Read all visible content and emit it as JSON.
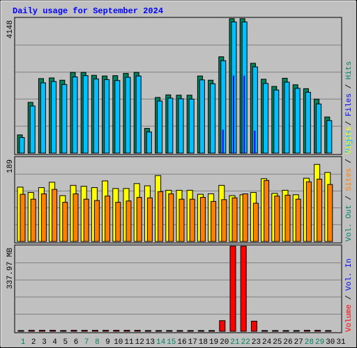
{
  "chart_data": [
    {
      "type": "bar",
      "title": "Daily usage for September 2024",
      "panel": "hits",
      "ymax_label": "4148",
      "ylim": [
        0,
        4148
      ],
      "categories": [
        "1",
        "2",
        "3",
        "4",
        "5",
        "6",
        "7",
        "8",
        "9",
        "10",
        "11",
        "12",
        "13",
        "14",
        "15",
        "16",
        "17",
        "18",
        "19",
        "20",
        "21",
        "22",
        "23",
        "24",
        "25",
        "26",
        "27",
        "28",
        "29",
        "30",
        "31"
      ],
      "weekend_days": [
        "1",
        "7",
        "8",
        "14",
        "15",
        "21",
        "22",
        "28",
        "29"
      ],
      "legend": [
        "Hits",
        "Files",
        "Pages"
      ],
      "colors": {
        "hits": "#00805c",
        "files": "#00c0ff",
        "pages": "#0000ff"
      },
      "series": [
        {
          "name": "Hits",
          "values": [
            560,
            1560,
            2290,
            2310,
            2240,
            2480,
            2480,
            2390,
            2370,
            2380,
            2450,
            2480,
            760,
            1710,
            1790,
            1780,
            1780,
            2370,
            2240,
            2960,
            4130,
            4130,
            2760,
            2270,
            2050,
            2300,
            2100,
            1980,
            1660,
            1110,
            0
          ]
        },
        {
          "name": "Files",
          "values": [
            480,
            1450,
            2160,
            2200,
            2110,
            2340,
            2380,
            2280,
            2260,
            2230,
            2330,
            2370,
            650,
            1600,
            1690,
            1670,
            1660,
            2250,
            2130,
            2840,
            4030,
            4030,
            2650,
            2140,
            1940,
            2180,
            1990,
            1870,
            1510,
            1000,
            0
          ]
        },
        {
          "name": "Pages",
          "values": [
            0,
            0,
            0,
            0,
            0,
            0,
            0,
            0,
            0,
            0,
            0,
            0,
            0,
            0,
            0,
            0,
            0,
            0,
            0,
            720,
            2380,
            2380,
            690,
            0,
            0,
            0,
            0,
            0,
            0,
            0,
            0
          ]
        }
      ]
    },
    {
      "type": "bar",
      "panel": "visits_sites",
      "ymax_label": "189",
      "ylim": [
        0,
        189
      ],
      "legend": [
        "Visits",
        "Sites",
        "Out",
        "Vol."
      ],
      "colors": {
        "visits": "#ffff00",
        "sites": "#ff8000"
      },
      "series": [
        {
          "name": "Visits",
          "values": [
            122,
            110,
            121,
            133,
            103,
            126,
            124,
            121,
            136,
            119,
            119,
            130,
            125,
            148,
            115,
            115,
            115,
            106,
            107,
            126,
            103,
            105,
            110,
            141,
            108,
            115,
            105,
            142,
            173,
            155,
            0
          ]
        },
        {
          "name": "Sites",
          "values": [
            106,
            95,
            107,
            117,
            88,
            107,
            95,
            92,
            102,
            88,
            91,
            99,
            98,
            112,
            107,
            95,
            95,
            99,
            90,
            94,
            98,
            107,
            86,
            137,
            102,
            104,
            95,
            134,
            140,
            128,
            0
          ]
        }
      ]
    },
    {
      "type": "bar",
      "panel": "volume",
      "ymax_label": "337.97 MB",
      "ylim": [
        0,
        337.97
      ],
      "y_unit": "MB",
      "legend": [
        "Volume",
        "Vol. In",
        "Vol. Out"
      ],
      "colors": {
        "volume": "#ff0000",
        "vol_in": "#0000ff",
        "vol_out": "#00805c"
      },
      "series": [
        {
          "name": "Volume",
          "values": [
            3,
            4,
            4,
            4,
            3,
            4,
            4,
            4,
            4,
            4,
            4,
            4,
            3,
            3,
            3,
            3,
            3,
            3,
            3,
            42,
            336,
            336,
            40,
            3,
            3,
            3,
            3,
            4,
            4,
            3,
            0
          ]
        }
      ]
    }
  ]
}
